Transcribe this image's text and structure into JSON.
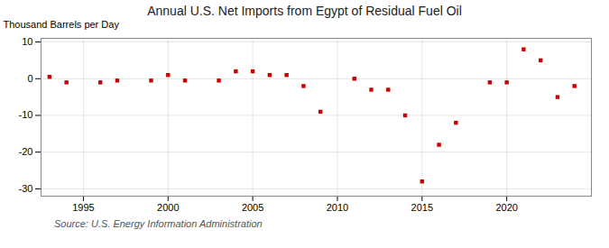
{
  "chart_data": {
    "type": "scatter",
    "title": "Annual U.S. Net Imports from Egypt of Residual Fuel Oil",
    "ylabel": "Thousand Barrels per Day",
    "annotations": [
      "Source: U.S. Energy Information Administration"
    ],
    "x": [
      1993,
      1994,
      1996,
      1997,
      1999,
      2000,
      2001,
      2003,
      2004,
      2005,
      2006,
      2007,
      2008,
      2009,
      2011,
      2012,
      2013,
      2014,
      2015,
      2016,
      2017,
      2019,
      2020,
      2021,
      2022,
      2023,
      2024
    ],
    "values": [
      0.5,
      -1,
      -1,
      -0.5,
      -0.5,
      1,
      -0.5,
      -0.5,
      2,
      2,
      1,
      1,
      -2,
      -9,
      0,
      -3,
      -3,
      -10,
      -28,
      -18,
      -12,
      -1,
      -1,
      8,
      5,
      -5,
      -2
    ],
    "color": "#cc0000",
    "marker": "square",
    "xlim": [
      1992.5,
      2025
    ],
    "ylim": [
      -32,
      11
    ],
    "xticks": [
      1995,
      2000,
      2005,
      2010,
      2015,
      2020
    ],
    "yticks": [
      -30,
      -20,
      -10,
      0,
      10
    ],
    "grid": true
  }
}
